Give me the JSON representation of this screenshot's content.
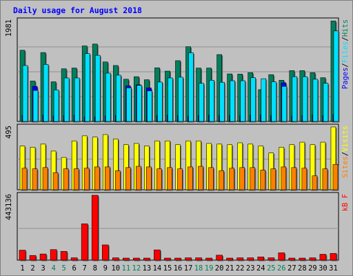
{
  "title": "Daily usage for August 2018",
  "colors": {
    "background": "#c0c0c0",
    "title": "#0000ff",
    "hits": "#00805c",
    "files": "#00e0ff",
    "pages": "#0000ff",
    "visits": "#ffff00",
    "sites": "#ff8000",
    "kbytes": "#ff0000",
    "weekend_label": "#00805c",
    "weekday_label": "#000000"
  },
  "chart_data": [
    {
      "type": "bar",
      "name": "hits-files-pages",
      "ytick_label": "1981",
      "ylim": [
        0,
        1981
      ],
      "legend": [
        {
          "label": "Pages",
          "color": "#0000ff"
        },
        {
          "label": "/",
          "color": "#000000"
        },
        {
          "label": "Files",
          "color": "#00e0ff"
        },
        {
          "label": "/",
          "color": "#000000"
        },
        {
          "label": "Hits",
          "color": "#00805c"
        }
      ],
      "categories": [
        "1",
        "2",
        "3",
        "4",
        "5",
        "6",
        "7",
        "8",
        "9",
        "10",
        "11",
        "12",
        "13",
        "14",
        "15",
        "16",
        "17",
        "18",
        "19",
        "20",
        "21",
        "22",
        "23",
        "24",
        "25",
        "26",
        "27",
        "28",
        "29",
        "30",
        "31"
      ],
      "series": [
        {
          "name": "Hits",
          "values": [
            1400,
            795,
            1355,
            780,
            1035,
            1050,
            1485,
            1522,
            1170,
            1100,
            830,
            880,
            820,
            1055,
            990,
            1195,
            1470,
            1050,
            1050,
            1315,
            935,
            930,
            960,
            625,
            920,
            810,
            1000,
            1000,
            960,
            860,
            1975
          ]
        },
        {
          "name": "Files",
          "values": [
            1100,
            610,
            1120,
            620,
            855,
            855,
            1335,
            1300,
            950,
            910,
            660,
            710,
            600,
            775,
            855,
            870,
            1350,
            750,
            810,
            770,
            800,
            800,
            860,
            840,
            780,
            690,
            880,
            880,
            830,
            750,
            1780
          ]
        },
        {
          "name": "Pages",
          "values": [
            120,
            690,
            130,
            110,
            120,
            130,
            90,
            90,
            110,
            120,
            700,
            720,
            660,
            120,
            130,
            120,
            110,
            120,
            130,
            120,
            120,
            120,
            130,
            130,
            120,
            760,
            110,
            120,
            130,
            120,
            140
          ]
        }
      ]
    },
    {
      "type": "bar",
      "name": "visits-sites",
      "ytick_label": "495",
      "ylim": [
        0,
        495
      ],
      "legend": [
        {
          "label": "Sites",
          "color": "#ff8000"
        },
        {
          "label": "/",
          "color": "#000000"
        },
        {
          "label": "Visits",
          "color": "#ffff00"
        }
      ],
      "categories": [
        "1",
        "2",
        "3",
        "4",
        "5",
        "6",
        "7",
        "8",
        "9",
        "10",
        "11",
        "12",
        "13",
        "14",
        "15",
        "16",
        "17",
        "18",
        "19",
        "20",
        "21",
        "22",
        "23",
        "24",
        "25",
        "26",
        "27",
        "28",
        "29",
        "30",
        "31"
      ],
      "series": [
        {
          "name": "Visits",
          "values": [
            345,
            335,
            360,
            305,
            255,
            385,
            425,
            415,
            435,
            400,
            355,
            365,
            345,
            385,
            385,
            355,
            385,
            385,
            365,
            360,
            355,
            370,
            360,
            345,
            290,
            335,
            355,
            375,
            355,
            375,
            495
          ]
        },
        {
          "name": "Sites",
          "values": [
            170,
            165,
            175,
            135,
            165,
            165,
            170,
            180,
            180,
            150,
            175,
            185,
            180,
            165,
            175,
            165,
            180,
            185,
            175,
            150,
            170,
            175,
            175,
            155,
            165,
            180,
            175,
            170,
            110,
            165,
            200
          ]
        }
      ]
    },
    {
      "type": "bar",
      "name": "kbytes",
      "ytick_label": "443136",
      "ylim": [
        0,
        443136
      ],
      "legend": [
        {
          "label": "kB F",
          "color": "#ff0000"
        }
      ],
      "categories": [
        "1",
        "2",
        "3",
        "4",
        "5",
        "6",
        "7",
        "8",
        "9",
        "10",
        "11",
        "12",
        "13",
        "14",
        "15",
        "16",
        "17",
        "18",
        "19",
        "20",
        "21",
        "22",
        "23",
        "24",
        "25",
        "26",
        "27",
        "28",
        "29",
        "30",
        "31"
      ],
      "series": [
        {
          "name": "kB F",
          "values": [
            68000,
            32000,
            42000,
            72000,
            60000,
            16000,
            248000,
            443136,
            104000,
            16000,
            14000,
            14000,
            14000,
            70000,
            14000,
            14000,
            16000,
            16000,
            14000,
            34000,
            14000,
            16000,
            16000,
            22000,
            16000,
            50000,
            14000,
            14000,
            16000,
            40000,
            46000
          ]
        }
      ]
    }
  ],
  "x_labels": {
    "values": [
      "1",
      "2",
      "3",
      "4",
      "5",
      "6",
      "7",
      "8",
      "9",
      "10",
      "11",
      "12",
      "13",
      "14",
      "15",
      "16",
      "17",
      "18",
      "19",
      "20",
      "21",
      "22",
      "23",
      "24",
      "25",
      "26",
      "27",
      "28",
      "29",
      "30",
      "31"
    ],
    "weekend": [
      "4",
      "5",
      "11",
      "12",
      "18",
      "19",
      "25",
      "26"
    ]
  }
}
